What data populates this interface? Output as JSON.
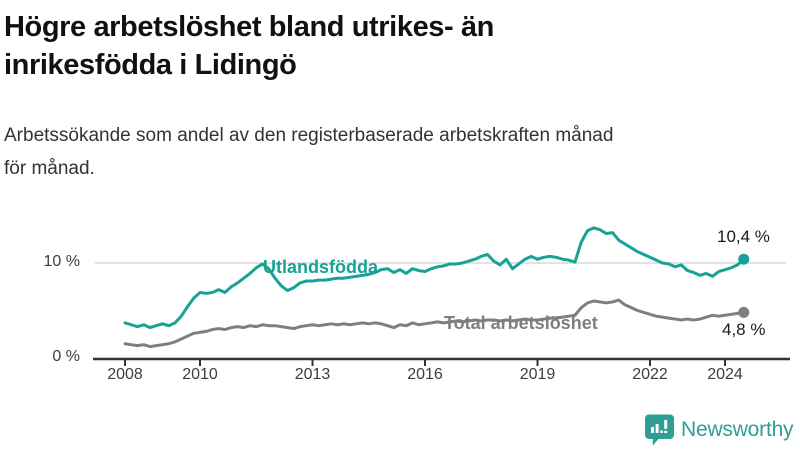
{
  "header": {
    "title_line1": "Högre arbetslöshet bland utrikes- än",
    "title_line2": "inrikesfödda i Lidingö",
    "subtitle_line1": "Arbetssökande som andel av den registerbaserade arbetskraften månad",
    "subtitle_line2": "för månad."
  },
  "chart_data": {
    "type": "line",
    "title": "Högre arbetslöshet bland utrikes- än inrikesfödda i Lidingö",
    "subtitle": "Arbetssökande som andel av den registerbaserade arbetskraften månad för månad.",
    "unit": "%",
    "xlabel": "",
    "ylabel": "",
    "grid": "y-gridline at 10 % only",
    "legend_position": "inline labels on lines",
    "x_start": 2008,
    "x_step_years": 0.1666667,
    "x_ticks": [
      2008,
      2010,
      2013,
      2016,
      2019,
      2022,
      2024
    ],
    "y_ticks": [
      {
        "value": 0,
        "label": "0 %"
      },
      {
        "value": 10,
        "label": "10 %"
      }
    ],
    "grid_values": [
      10
    ],
    "ylim": [
      0,
      15
    ],
    "xlim": [
      2007.1,
      2025.7
    ],
    "colors": {
      "accent_teal": "#16a296",
      "line_gray": "#7f7f7f",
      "grid": "#d9d9d9",
      "axis": "#333333"
    },
    "series": [
      {
        "name": "Utlandsfödda",
        "color": "#16a296",
        "end_label": "10,4 %",
        "end_value": 10.4,
        "values": [
          3.7,
          3.5,
          3.3,
          3.5,
          3.2,
          3.4,
          3.6,
          3.4,
          3.7,
          4.4,
          5.4,
          6.3,
          6.9,
          6.8,
          6.9,
          7.2,
          6.9,
          7.5,
          7.9,
          8.4,
          8.9,
          9.5,
          9.9,
          9.4,
          8.4,
          7.6,
          7.1,
          7.4,
          7.9,
          8.1,
          8.1,
          8.2,
          8.2,
          8.3,
          8.4,
          8.4,
          8.5,
          8.6,
          8.7,
          8.8,
          9.0,
          9.3,
          9.4,
          9.0,
          9.3,
          8.9,
          9.4,
          9.2,
          9.1,
          9.4,
          9.6,
          9.7,
          9.9,
          9.9,
          10.0,
          10.2,
          10.4,
          10.7,
          10.9,
          10.2,
          9.8,
          10.4,
          9.4,
          9.9,
          10.4,
          10.7,
          10.4,
          10.6,
          10.7,
          10.6,
          10.4,
          10.3,
          10.1,
          12.2,
          13.4,
          13.7,
          13.5,
          13.1,
          13.2,
          12.4,
          12.0,
          11.6,
          11.2,
          10.9,
          10.6,
          10.3,
          10.0,
          9.9,
          9.6,
          9.8,
          9.2,
          9.0,
          8.7,
          8.9,
          8.6,
          9.1,
          9.3,
          9.5,
          9.8,
          10.4
        ]
      },
      {
        "name": "Total arbetslöshet",
        "color": "#7f7f7f",
        "end_label": "4,8 %",
        "end_value": 4.8,
        "values": [
          1.5,
          1.4,
          1.3,
          1.4,
          1.2,
          1.3,
          1.4,
          1.5,
          1.7,
          2.0,
          2.3,
          2.6,
          2.7,
          2.8,
          3.0,
          3.1,
          3.0,
          3.2,
          3.3,
          3.2,
          3.4,
          3.3,
          3.5,
          3.4,
          3.4,
          3.3,
          3.2,
          3.1,
          3.3,
          3.4,
          3.5,
          3.4,
          3.5,
          3.6,
          3.5,
          3.6,
          3.5,
          3.6,
          3.7,
          3.6,
          3.7,
          3.6,
          3.4,
          3.2,
          3.5,
          3.4,
          3.7,
          3.5,
          3.6,
          3.7,
          3.8,
          3.7,
          3.8,
          3.9,
          3.8,
          3.9,
          4.0,
          3.9,
          4.0,
          4.0,
          3.9,
          4.0,
          3.9,
          4.0,
          4.1,
          4.0,
          4.0,
          4.1,
          4.2,
          4.2,
          4.3,
          4.4,
          4.5,
          5.3,
          5.8,
          6.0,
          5.9,
          5.8,
          5.9,
          6.1,
          5.6,
          5.3,
          5.0,
          4.8,
          4.6,
          4.4,
          4.3,
          4.2,
          4.1,
          4.0,
          4.1,
          4.0,
          4.1,
          4.3,
          4.5,
          4.4,
          4.5,
          4.6,
          4.7,
          4.8
        ]
      }
    ]
  },
  "footer": {
    "brand": "Newsworthy"
  }
}
